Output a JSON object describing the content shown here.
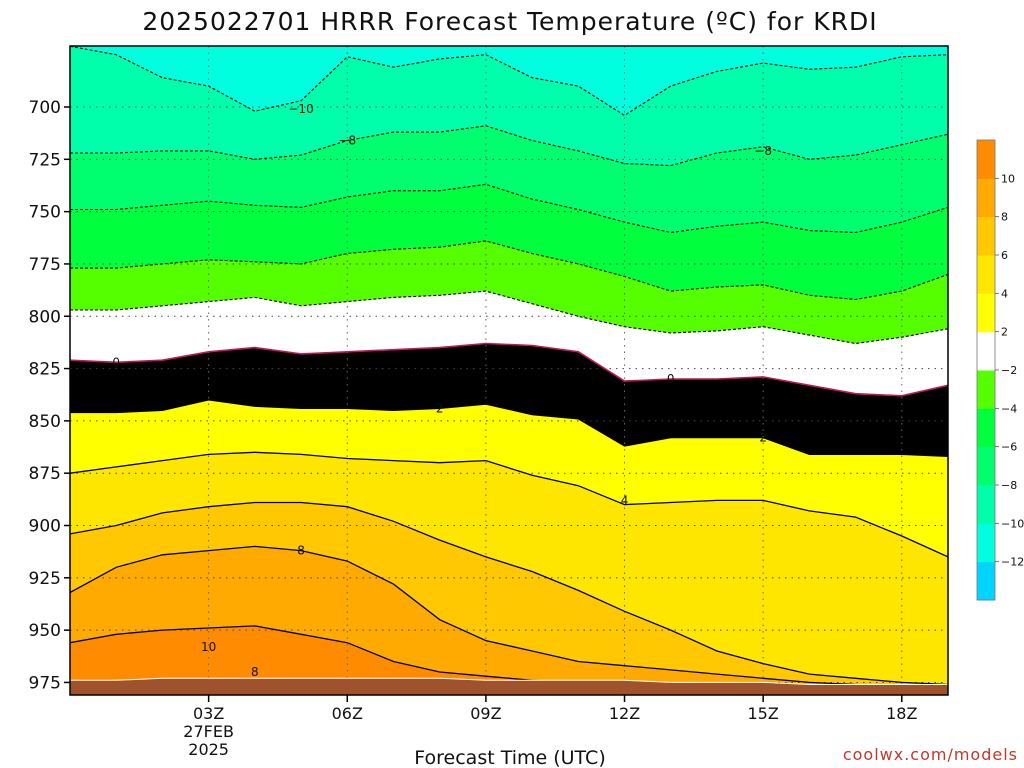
{
  "chart_data": {
    "type": "area",
    "title": "2025022701 HRRR Forecast Temperature (ºC) for KRDI",
    "xlabel": "Forecast Time (UTC)",
    "ylabel": "",
    "x_tick_labels": [
      "03Z",
      "06Z",
      "09Z",
      "12Z",
      "15Z",
      "18Z"
    ],
    "x_tick_hours": [
      3,
      6,
      9,
      12,
      15,
      18
    ],
    "x_sub_labels": [
      "27FEB",
      "2025"
    ],
    "xlim": [
      0,
      19
    ],
    "y_tick_labels": [
      "700",
      "725",
      "750",
      "775",
      "800",
      "825",
      "850",
      "875",
      "900",
      "925",
      "950",
      "975"
    ],
    "y_tick_values": [
      700,
      725,
      750,
      775,
      800,
      825,
      850,
      875,
      900,
      925,
      950,
      975
    ],
    "ylim": [
      673,
      980
    ],
    "y_scale": "pressure (inverted)",
    "grid": true,
    "colorbar": {
      "ticks": [
        "10",
        "8",
        "6",
        "4",
        "2",
        "−2",
        "−4",
        "−6",
        "−8",
        "−10",
        "−12"
      ],
      "levels": [
        -14,
        -12,
        -10,
        -8,
        -6,
        -4,
        -2,
        2,
        4,
        6,
        8,
        10,
        12
      ],
      "colors": [
        "#00d4ff",
        "#00ffde",
        "#00ffaa",
        "#00ff6e",
        "#00ff3c",
        "#55ff00",
        "#ffffff",
        "#ffff00",
        "#ffe600",
        "#ffc800",
        "#ffaa00",
        "#ff8c00"
      ]
    },
    "x": [
      0,
      1,
      2,
      3,
      4,
      5,
      6,
      7,
      8,
      9,
      10,
      11,
      12,
      13,
      14,
      15,
      16,
      17,
      18,
      19
    ],
    "isotherms": [
      {
        "level": -10,
        "p": [
          671,
          675,
          686,
          690,
          702,
          697,
          676,
          681,
          677,
          675,
          686,
          690,
          704,
          690,
          683,
          679,
          682,
          681,
          676,
          675
        ]
      },
      {
        "level": -8,
        "p": [
          722,
          722,
          721,
          721,
          725,
          723,
          716,
          712,
          712,
          709,
          716,
          721,
          727,
          728,
          722,
          719,
          725,
          723,
          718,
          713
        ]
      },
      {
        "level": -6,
        "p": [
          749,
          749,
          747,
          745,
          747,
          748,
          743,
          740,
          740,
          737,
          744,
          749,
          755,
          760,
          757,
          755,
          759,
          760,
          755,
          748
        ]
      },
      {
        "level": -4,
        "p": [
          777,
          777,
          775,
          773,
          774,
          775,
          770,
          768,
          767,
          764,
          770,
          775,
          781,
          788,
          786,
          785,
          790,
          792,
          788,
          780
        ]
      },
      {
        "level": -2,
        "p": [
          797,
          797,
          795,
          793,
          791,
          795,
          793,
          791,
          790,
          788,
          794,
          800,
          805,
          808,
          807,
          805,
          809,
          813,
          810,
          806
        ]
      },
      {
        "level": 0,
        "p": [
          821,
          822,
          821,
          817,
          815,
          818,
          817,
          816,
          815,
          813,
          814,
          817,
          831,
          830,
          830,
          829,
          833,
          837,
          838,
          833
        ]
      },
      {
        "level": 2,
        "p": [
          846,
          846,
          845,
          840,
          843,
          844,
          844,
          845,
          844,
          842,
          847,
          849,
          862,
          858,
          858,
          858,
          866,
          866,
          866,
          867
        ]
      },
      {
        "level": 4,
        "p": [
          875,
          872,
          869,
          866,
          865,
          866,
          868,
          869,
          870,
          869,
          876,
          881,
          890,
          889,
          888,
          888,
          893,
          896,
          905,
          915
        ]
      },
      {
        "level": 6,
        "p": [
          904,
          900,
          894,
          891,
          889,
          889,
          891,
          898,
          907,
          915,
          922,
          931,
          941,
          950,
          960,
          966,
          971,
          973,
          975,
          976
        ]
      },
      {
        "level": 8,
        "p": [
          932,
          920,
          914,
          912,
          910,
          912,
          917,
          928,
          945,
          955,
          960,
          965,
          967,
          969,
          971,
          973,
          975,
          976,
          977,
          978
        ]
      },
      {
        "level": 10,
        "p": [
          956,
          952,
          950,
          949,
          948,
          952,
          956,
          965,
          970,
          972,
          974,
          975,
          976,
          977,
          978,
          978,
          978,
          979,
          979,
          979
        ]
      }
    ],
    "surface_pressure": [
      974,
      974,
      973,
      973,
      973,
      973,
      973,
      973,
      973,
      974,
      974,
      974,
      974,
      975,
      975,
      975,
      976,
      976,
      976,
      976
    ],
    "contour_labels": [
      {
        "text": "−10",
        "x": 5.0,
        "p": 701
      },
      {
        "text": "−8",
        "x": 6.0,
        "p": 716
      },
      {
        "text": "−8",
        "x": 15.0,
        "p": 721
      },
      {
        "text": "0",
        "x": 1.0,
        "p": 822
      },
      {
        "text": "0",
        "x": 13.0,
        "p": 830
      },
      {
        "text": "2",
        "x": 8.0,
        "p": 844
      },
      {
        "text": "2",
        "x": 15.0,
        "p": 858
      },
      {
        "text": "4",
        "x": 12.0,
        "p": 888
      },
      {
        "text": "8",
        "x": 5.0,
        "p": 912
      },
      {
        "text": "10",
        "x": 3.0,
        "p": 958
      },
      {
        "text": "8",
        "x": 4.0,
        "p": 970
      }
    ],
    "ground_color": "#a0522d"
  },
  "credit": "coolwx.com/models"
}
